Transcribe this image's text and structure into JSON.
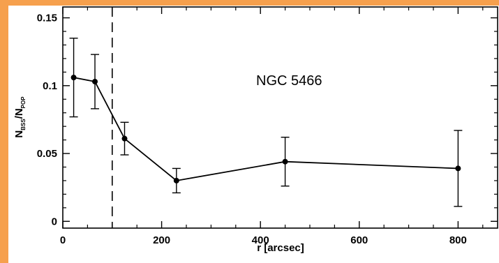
{
  "chart_data": {
    "type": "line",
    "x": [
      22,
      65,
      125,
      230,
      450,
      800
    ],
    "y": [
      0.106,
      0.103,
      0.061,
      0.03,
      0.044,
      0.039
    ],
    "yerr_low": [
      0.077,
      0.083,
      0.049,
      0.021,
      0.026,
      0.011
    ],
    "yerr_high": [
      0.135,
      0.123,
      0.073,
      0.039,
      0.062,
      0.067
    ],
    "xlim": [
      0,
      880
    ],
    "ylim": [
      -0.005,
      0.158
    ],
    "xticks": [
      0,
      200,
      400,
      600,
      800
    ],
    "xtick_labels": [
      "0",
      "200",
      "400",
      "600",
      "800"
    ],
    "yticks": [
      0,
      0.05,
      0.1,
      0.15
    ],
    "ytick_labels": [
      "0",
      "0.05",
      "0.1",
      "0.15"
    ],
    "xlabel": "r [arcsec]",
    "ylabel_main": "N",
    "ylabel_sub1": "BSS",
    "ylabel_sep": "/N",
    "ylabel_sub2": "POP",
    "vline_x": 100,
    "annotation": "NGC 5466",
    "grid": false,
    "colors": {
      "line": "#000000",
      "background": "#ffffff",
      "frame": "#f6a04d"
    }
  }
}
